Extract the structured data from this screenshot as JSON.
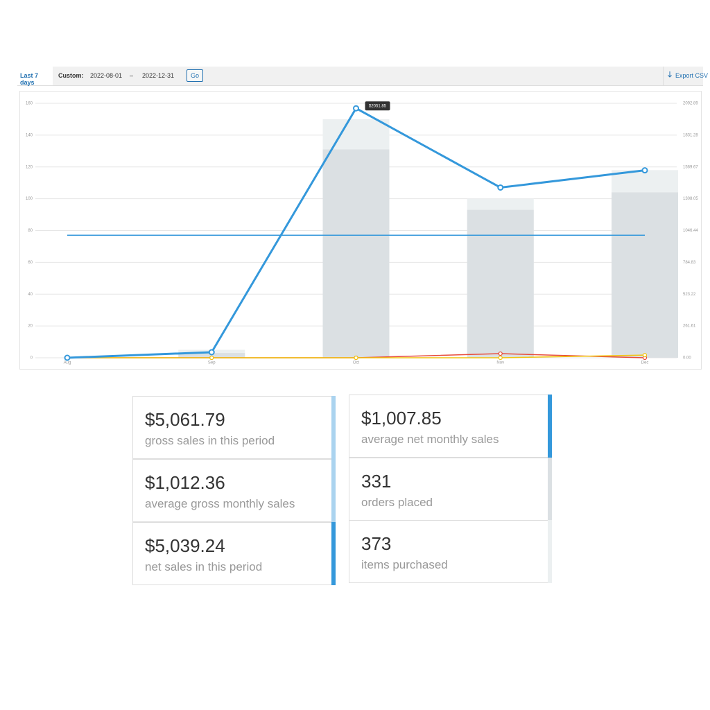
{
  "toolbar": {
    "range": "Last 7 days",
    "custom": "Custom:",
    "start": "2022-08-01",
    "dash": "–",
    "end": "2022-12-31",
    "go": "Go",
    "export": "Export CSV"
  },
  "chart_data": {
    "type": "line",
    "categories": [
      "Aug",
      "Sep",
      "Oct",
      "Nov",
      "Dec"
    ],
    "ylim": [
      0,
      160
    ],
    "yticks": [
      0,
      20,
      40,
      60,
      80,
      100,
      120,
      140,
      160
    ],
    "y2lim": [
      0,
      2092.89
    ],
    "y2ticks": [
      {
        "value": 0,
        "label": "0.00"
      },
      {
        "value": 261.61,
        "label": "261.61"
      },
      {
        "value": 523.22,
        "label": "523.22"
      },
      {
        "value": 784.83,
        "label": "784.83"
      },
      {
        "value": 1046.44,
        "label": "1046.44"
      },
      {
        "value": 1308.05,
        "label": "1308.05"
      },
      {
        "value": 1569.67,
        "label": "1569.67"
      },
      {
        "value": 1831.28,
        "label": "1831.28"
      },
      {
        "value": 2092.89,
        "label": "2092.89"
      }
    ],
    "grid": true,
    "bars": [
      {
        "color": "#ecf0f1",
        "values": [
          0,
          5,
          150,
          100,
          118
        ]
      },
      {
        "color": "#dbe0e3",
        "values": [
          0,
          3,
          131,
          93,
          104
        ]
      }
    ],
    "series": [
      {
        "color": "#3498db",
        "axis": "y2",
        "values": [
          0,
          45.6,
          2051.85,
          1400,
          1541.79
        ],
        "value_labels": [
          null,
          null,
          "$2051.85",
          null,
          null
        ]
      },
      {
        "color": "#f1c40f",
        "axis": "y2",
        "values": [
          0,
          0,
          0,
          0,
          22
        ]
      },
      {
        "color": "#e74c3c",
        "axis": "y2",
        "values": [
          0,
          0,
          0,
          34,
          0
        ]
      }
    ],
    "average": {
      "color": "#3498db",
      "axis": "y2",
      "value": 1007.85
    }
  },
  "stats": [
    {
      "value": "$5,061.79",
      "label": "gross sales in this period"
    },
    {
      "value": "$1,012.36",
      "label": "average gross monthly sales"
    },
    {
      "value": "$5,039.24",
      "label": "net sales in this period"
    },
    {
      "value": "$1,007.85",
      "label": "average net monthly sales"
    },
    {
      "value": "331",
      "label": "orders placed"
    },
    {
      "value": "373",
      "label": "items purchased"
    }
  ]
}
